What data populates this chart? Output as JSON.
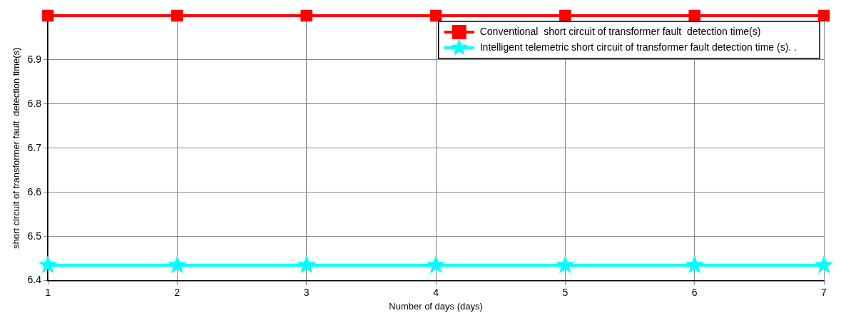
{
  "chart_data": {
    "type": "line",
    "xlabel": "Number of days (days)",
    "ylabel": "short circuit of transformer fault  detection time(s)",
    "x": [
      1,
      2,
      3,
      4,
      5,
      6,
      7
    ],
    "series": [
      {
        "name": "Conventional  short circuit of transformer fault  detection time(s)",
        "color": "#ff0000",
        "marker": "square",
        "values": [
          7,
          7,
          7,
          7,
          7,
          7,
          7
        ]
      },
      {
        "name": "Intelligent telemetric short circuit of transformer fault detection time (s). .",
        "color": "#00ffff",
        "marker": "star",
        "values": [
          6.435,
          6.435,
          6.435,
          6.435,
          6.435,
          6.435,
          6.435
        ]
      }
    ],
    "xlim": [
      1,
      7
    ],
    "xticks": [
      1,
      2,
      3,
      4,
      5,
      6,
      7
    ],
    "ylim": [
      6.4,
      7
    ],
    "yticks": [
      6.4,
      6.5,
      6.6,
      6.7,
      6.8,
      6.9,
      {
        "value": 7,
        "label": null
      }
    ],
    "grid": true,
    "legend": "top right",
    "line_style": "solid"
  }
}
